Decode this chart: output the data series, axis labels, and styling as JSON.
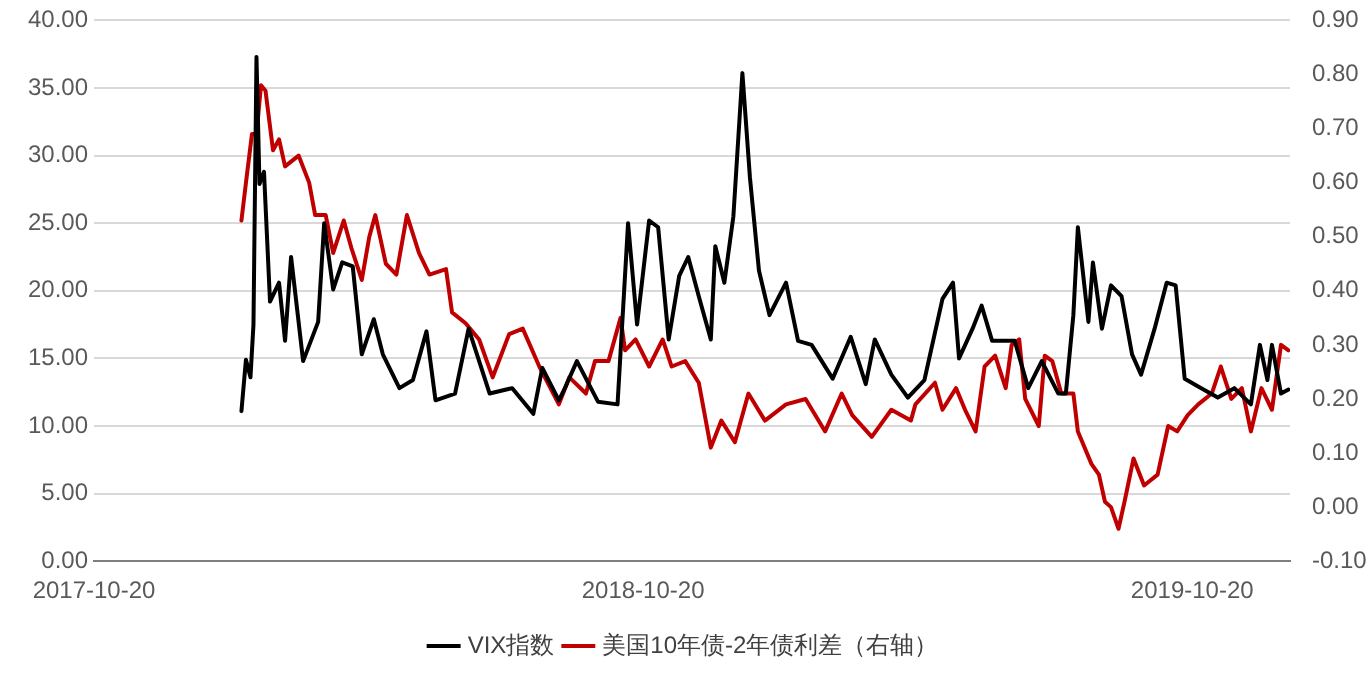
{
  "chart_data": {
    "type": "line",
    "xlim": [
      "2017-10-20",
      "2019-12-24"
    ],
    "xticks": [
      "2017-10-20",
      "2018-10-20",
      "2019-10-20"
    ],
    "ylim": [
      0,
      40
    ],
    "yticks": [
      {
        "value": 0,
        "label": "0.00"
      },
      {
        "value": 5,
        "label": "5.00"
      },
      {
        "value": 10,
        "label": "10.00"
      },
      {
        "value": 15,
        "label": "15.00"
      },
      {
        "value": 20,
        "label": "20.00"
      },
      {
        "value": 25,
        "label": "25.00"
      },
      {
        "value": 30,
        "label": "30.00"
      },
      {
        "value": 35,
        "label": "35.00"
      },
      {
        "value": 40,
        "label": "40.00"
      }
    ],
    "y2lim": [
      -0.1,
      0.9
    ],
    "y2ticks": [
      {
        "value": -0.1,
        "label": "-0.10"
      },
      {
        "value": 0,
        "label": "0.00"
      },
      {
        "value": 0.1,
        "label": "0.10"
      },
      {
        "value": 0.2,
        "label": "0.20"
      },
      {
        "value": 0.3,
        "label": "0.30"
      },
      {
        "value": 0.4,
        "label": "0.40"
      },
      {
        "value": 0.5,
        "label": "0.50"
      },
      {
        "value": 0.6,
        "label": "0.60"
      },
      {
        "value": 0.7,
        "label": "0.70"
      },
      {
        "value": 0.8,
        "label": "0.80"
      },
      {
        "value": 0.9,
        "label": "0.90"
      }
    ],
    "grid": "y",
    "legend": "bottom",
    "marker": "none",
    "line_style": "solid",
    "series": [
      {
        "name": "VIX指数",
        "color": "#000000",
        "x": [
          "2018-01-26",
          "2018-01-29",
          "2018-02-01",
          "2018-02-03",
          "2018-02-05",
          "2018-02-07",
          "2018-02-10",
          "2018-02-14",
          "2018-02-20",
          "2018-02-24",
          "2018-02-28",
          "2018-03-08",
          "2018-03-18",
          "2018-03-22",
          "2018-03-28",
          "2018-04-03",
          "2018-04-10",
          "2018-04-16",
          "2018-04-24",
          "2018-04-30",
          "2018-05-11",
          "2018-05-20",
          "2018-05-29",
          "2018-06-04",
          "2018-06-17",
          "2018-06-26",
          "2018-07-10",
          "2018-07-25",
          "2018-08-08",
          "2018-08-14",
          "2018-08-25",
          "2018-08-29",
          "2018-09-06",
          "2018-09-20",
          "2018-10-03",
          "2018-10-10",
          "2018-10-16",
          "2018-10-24",
          "2018-10-30",
          "2018-11-06",
          "2018-11-13",
          "2018-11-19",
          "2018-11-26",
          "2018-12-04",
          "2018-12-07",
          "2018-12-13",
          "2018-12-19",
          "2018-12-25",
          "2018-12-30",
          "2019-01-05",
          "2019-01-12",
          "2019-01-23",
          "2019-01-31",
          "2019-02-09",
          "2019-02-23",
          "2019-03-07",
          "2019-03-17",
          "2019-03-23",
          "2019-04-03",
          "2019-04-14",
          "2019-04-25",
          "2019-05-07",
          "2019-05-14",
          "2019-05-18",
          "2019-05-27",
          "2019-06-02",
          "2019-06-09",
          "2019-06-24",
          "2019-07-03",
          "2019-07-12",
          "2019-07-23",
          "2019-07-28",
          "2019-08-02",
          "2019-08-05",
          "2019-08-12",
          "2019-08-15",
          "2019-08-21",
          "2019-08-27",
          "2019-09-03",
          "2019-09-10",
          "2019-09-16",
          "2019-09-25",
          "2019-10-03",
          "2019-10-09",
          "2019-10-15",
          "2019-10-26",
          "2019-11-06",
          "2019-11-17",
          "2019-11-28",
          "2019-12-04",
          "2019-12-09",
          "2019-12-12",
          "2019-12-18",
          "2019-12-23"
        ],
        "values": [
          11.1,
          14.9,
          13.6,
          17.5,
          37.3,
          27.9,
          28.8,
          19.2,
          20.6,
          16.3,
          22.5,
          14.8,
          17.7,
          25,
          20.1,
          22.1,
          21.8,
          15.3,
          17.9,
          15.3,
          12.8,
          13.4,
          17,
          11.9,
          12.4,
          17.2,
          12.4,
          12.8,
          10.9,
          14.3,
          11.9,
          12.8,
          14.8,
          11.8,
          11.6,
          25,
          17.5,
          25.2,
          24.7,
          16.4,
          21.1,
          22.5,
          19.6,
          16.4,
          23.3,
          20.6,
          25.5,
          36.1,
          28.4,
          21.5,
          18.2,
          20.6,
          16.3,
          16,
          13.5,
          16.6,
          13.1,
          16.4,
          13.8,
          12.1,
          13.4,
          19.4,
          20.6,
          15,
          17.2,
          18.9,
          16.3,
          16.3,
          12.8,
          14.8,
          12.4,
          12.4,
          18.2,
          24.7,
          17.7,
          22.1,
          17.2,
          20.4,
          19.6,
          15.3,
          13.8,
          17.2,
          20.6,
          20.4,
          13.5,
          12.8,
          12.1,
          12.8,
          11.6,
          16,
          13.4,
          16,
          12.4,
          12.7
        ]
      },
      {
        "name": "美国10年债-2年债利差（右轴）",
        "color": "#c00000",
        "axis": "y2",
        "x": [
          "2018-01-26",
          "2018-01-29",
          "2018-02-02",
          "2018-02-05",
          "2018-02-08",
          "2018-02-11",
          "2018-02-16",
          "2018-02-20",
          "2018-02-24",
          "2018-03-05",
          "2018-03-12",
          "2018-03-16",
          "2018-03-23",
          "2018-03-28",
          "2018-04-04",
          "2018-04-09",
          "2018-04-16",
          "2018-04-21",
          "2018-04-25",
          "2018-05-02",
          "2018-05-09",
          "2018-05-16",
          "2018-05-24",
          "2018-05-31",
          "2018-06-11",
          "2018-06-15",
          "2018-06-24",
          "2018-07-03",
          "2018-07-12",
          "2018-07-23",
          "2018-08-01",
          "2018-08-12",
          "2018-08-25",
          "2018-09-01",
          "2018-09-12",
          "2018-09-18",
          "2018-09-27",
          "2018-10-05",
          "2018-10-08",
          "2018-10-15",
          "2018-10-24",
          "2018-11-02",
          "2018-11-08",
          "2018-11-17",
          "2018-11-26",
          "2018-12-04",
          "2018-12-11",
          "2018-12-20",
          "2018-12-29",
          "2019-01-09",
          "2019-01-23",
          "2019-02-05",
          "2019-02-18",
          "2019-03-01",
          "2019-03-08",
          "2019-03-21",
          "2019-04-03",
          "2019-04-16",
          "2019-04-19",
          "2019-05-02",
          "2019-05-07",
          "2019-05-16",
          "2019-05-22",
          "2019-05-29",
          "2019-06-04",
          "2019-06-11",
          "2019-06-18",
          "2019-06-22",
          "2019-06-27",
          "2019-07-01",
          "2019-07-10",
          "2019-07-14",
          "2019-07-19",
          "2019-07-25",
          "2019-08-02",
          "2019-08-05",
          "2019-08-14",
          "2019-08-19",
          "2019-08-23",
          "2019-08-27",
          "2019-09-01",
          "2019-09-05",
          "2019-09-11",
          "2019-09-18",
          "2019-09-27",
          "2019-10-04",
          "2019-10-10",
          "2019-10-17",
          "2019-10-24",
          "2019-11-02",
          "2019-11-08",
          "2019-11-15",
          "2019-11-22",
          "2019-11-28",
          "2019-12-05",
          "2019-12-12",
          "2019-12-18",
          "2019-12-23"
        ],
        "values": [
          0.53,
          0.6,
          0.69,
          0.69,
          0.78,
          0.77,
          0.66,
          0.68,
          0.63,
          0.65,
          0.6,
          0.54,
          0.54,
          0.47,
          0.53,
          0.48,
          0.42,
          0.5,
          0.54,
          0.45,
          0.43,
          0.54,
          0.47,
          0.43,
          0.44,
          0.36,
          0.34,
          0.31,
          0.24,
          0.32,
          0.33,
          0.26,
          0.19,
          0.24,
          0.21,
          0.27,
          0.27,
          0.35,
          0.29,
          0.31,
          0.26,
          0.31,
          0.26,
          0.27,
          0.23,
          0.11,
          0.16,
          0.12,
          0.21,
          0.16,
          0.19,
          0.2,
          0.14,
          0.21,
          0.17,
          0.13,
          0.18,
          0.16,
          0.19,
          0.23,
          0.18,
          0.22,
          0.18,
          0.14,
          0.26,
          0.28,
          0.22,
          0.3,
          0.31,
          0.2,
          0.15,
          0.28,
          0.27,
          0.21,
          0.21,
          0.14,
          0.08,
          0.06,
          0.01,
          0,
          -0.04,
          0.01,
          0.09,
          0.04,
          0.06,
          0.15,
          0.14,
          0.17,
          0.19,
          0.21,
          0.26,
          0.2,
          0.22,
          0.14,
          0.22,
          0.18,
          0.3,
          0.29
        ]
      }
    ]
  }
}
